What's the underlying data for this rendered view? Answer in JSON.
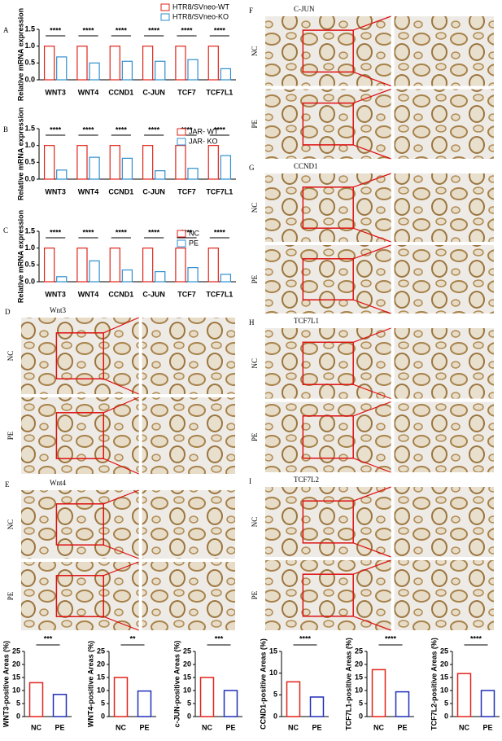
{
  "chart_data": [
    {
      "type": "bar",
      "panel_label": "A",
      "y_label": "Relative mRNA expression",
      "categories": [
        "WNT3",
        "WNT4",
        "CCND1",
        "C-JUN",
        "TCF7",
        "TCF7L1"
      ],
      "series": [
        {
          "name": "HTR8/SVneo-WT",
          "color": "#e2231a",
          "values": [
            1.0,
            1.0,
            1.0,
            1.0,
            1.0,
            1.0
          ]
        },
        {
          "name": "HTR8/SVneo-KO",
          "color": "#2f8fd0",
          "values": [
            0.68,
            0.5,
            0.55,
            0.55,
            0.6,
            0.33
          ]
        }
      ],
      "annotations": [
        "****",
        "****",
        "****",
        "****",
        "****",
        "****"
      ],
      "ylim": [
        0,
        1.5
      ],
      "yticks": [
        {
          "value": 0,
          "label": "0.0"
        },
        {
          "value": 0.5,
          "label": "0.5"
        },
        {
          "value": 1,
          "label": "1.0"
        },
        {
          "value": 1.5,
          "label": "1.5"
        }
      ]
    },
    {
      "type": "bar",
      "panel_label": "B",
      "y_label": "Relative mRNA expression",
      "categories": [
        "WNT3",
        "WNT4",
        "CCND1",
        "C-JUN",
        "TCF7",
        "TCF7L1"
      ],
      "series": [
        {
          "name": "JAR- WT",
          "color": "#e2231a",
          "values": [
            1.0,
            1.0,
            1.0,
            1.0,
            1.0,
            1.0
          ]
        },
        {
          "name": "JAR- KO",
          "color": "#2f8fd0",
          "values": [
            0.27,
            0.65,
            0.62,
            0.25,
            0.32,
            0.7
          ]
        }
      ],
      "annotations": [
        "****",
        "****",
        "****",
        "****",
        "****",
        "****"
      ],
      "ylim": [
        0,
        1.5
      ],
      "yticks": [
        {
          "value": 0,
          "label": "0.0"
        },
        {
          "value": 0.5,
          "label": "0.5"
        },
        {
          "value": 1,
          "label": "1.0"
        },
        {
          "value": 1.5,
          "label": "1.5"
        }
      ]
    },
    {
      "type": "bar",
      "panel_label": "C",
      "y_label": "Relative mRNA expression",
      "categories": [
        "WNT3",
        "WNT4",
        "CCND1",
        "C-JUN",
        "TCF7",
        "TCF7L1"
      ],
      "series": [
        {
          "name": "NC",
          "color": "#e2231a",
          "values": [
            1.0,
            1.0,
            1.0,
            1.0,
            1.0,
            1.0
          ]
        },
        {
          "name": "PE",
          "color": "#2f8fd0",
          "values": [
            0.15,
            0.62,
            0.35,
            0.3,
            0.42,
            0.22
          ]
        }
      ],
      "annotations": [
        "****",
        "****",
        "****",
        "****",
        "****",
        "****"
      ],
      "ylim": [
        0,
        1.5
      ],
      "yticks": [
        {
          "value": 0,
          "label": "0.0"
        },
        {
          "value": 0.5,
          "label": "0.5"
        },
        {
          "value": 1,
          "label": "1.0"
        },
        {
          "value": 1.5,
          "label": "1.5"
        }
      ]
    },
    {
      "type": "pair",
      "y_label": "WNT3-positive Areas (%)",
      "categories": [
        "NC",
        "PE"
      ],
      "values": [
        13,
        8.5
      ],
      "colors": [
        "#e2231a",
        "#1f2fb8"
      ],
      "significance": "***",
      "ylim": [
        0,
        25
      ],
      "yticks": [
        0,
        5,
        10,
        15,
        20,
        25
      ]
    },
    {
      "type": "pair",
      "y_label": "WNT4-positive Areas (%)",
      "categories": [
        "NC",
        "PE"
      ],
      "values": [
        15,
        9.8
      ],
      "colors": [
        "#e2231a",
        "#1f2fb8"
      ],
      "significance": "**",
      "ylim": [
        0,
        25
      ],
      "yticks": [
        0,
        5,
        10,
        15,
        20,
        25
      ]
    },
    {
      "type": "pair",
      "y_label": "c-JUN-positive Areas (%)",
      "categories": [
        "NC",
        "PE"
      ],
      "values": [
        15,
        10
      ],
      "colors": [
        "#e2231a",
        "#1f2fb8"
      ],
      "significance": "***",
      "ylim": [
        0,
        25
      ],
      "yticks": [
        0,
        5,
        10,
        15,
        20,
        25
      ]
    },
    {
      "type": "pair",
      "y_label": "CCND1-positive Areas (%)",
      "categories": [
        "NC",
        "PE"
      ],
      "values": [
        8,
        4.5
      ],
      "colors": [
        "#e2231a",
        "#1f2fb8"
      ],
      "significance": "****",
      "ylim": [
        0,
        15
      ],
      "yticks": [
        0,
        5,
        10,
        15
      ]
    },
    {
      "type": "pair",
      "y_label": "TCF7L1-positive Areas (%)",
      "categories": [
        "NC",
        "PE"
      ],
      "values": [
        18,
        9.5
      ],
      "colors": [
        "#e2231a",
        "#1f2fb8"
      ],
      "significance": "****",
      "ylim": [
        0,
        25
      ],
      "yticks": [
        0,
        5,
        10,
        15,
        20,
        25
      ]
    },
    {
      "type": "pair",
      "y_label": "TCF7L2-positive Areas (%)",
      "categories": [
        "NC",
        "PE"
      ],
      "values": [
        16.5,
        10
      ],
      "colors": [
        "#e2231a",
        "#1f2fb8"
      ],
      "significance": "****",
      "ylim": [
        0,
        25
      ],
      "yticks": [
        0,
        5,
        10,
        15,
        20,
        25
      ]
    }
  ],
  "image_panels": [
    {
      "letter": "D",
      "title": "Wnt3",
      "rows": [
        "NC",
        "PE"
      ]
    },
    {
      "letter": "E",
      "title": "Wnt4",
      "rows": [
        "NC",
        "PE"
      ]
    },
    {
      "letter": "F",
      "title": "C-JUN",
      "rows": [
        "NC",
        "PE"
      ]
    },
    {
      "letter": "G",
      "title": "CCND1",
      "rows": [
        "NC",
        "PE"
      ]
    },
    {
      "letter": "H",
      "title": "TCF7L1",
      "rows": [
        "NC",
        "PE"
      ]
    },
    {
      "letter": "I",
      "title": "TCF7L2",
      "rows": [
        "NC",
        "PE"
      ]
    }
  ]
}
